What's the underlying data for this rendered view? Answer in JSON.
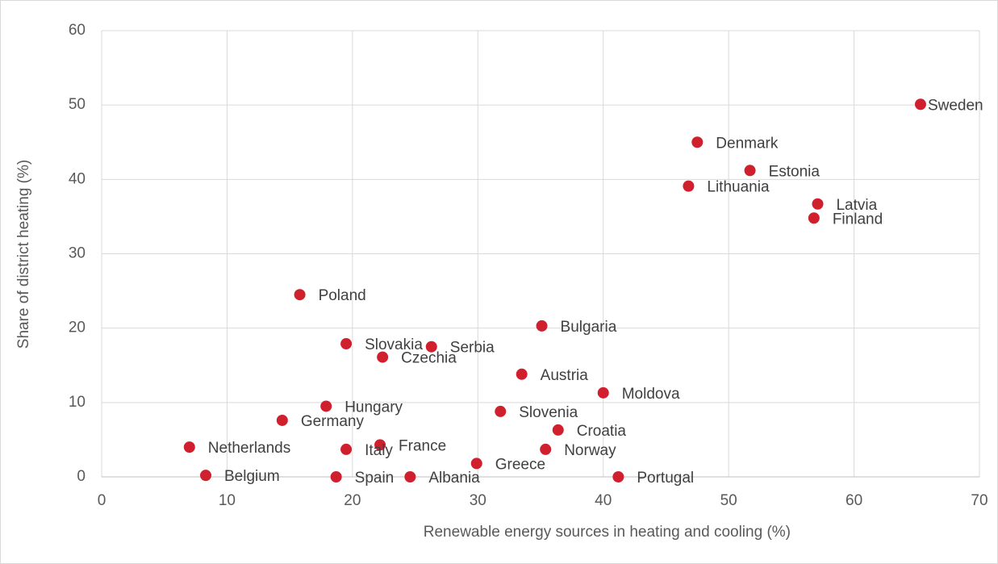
{
  "chart_data": {
    "type": "scatter",
    "x_label": "Renewable energy sources in heating and cooling (%)",
    "y_label": "Share of district heating (%)",
    "labels": [
      "Sweden",
      "Denmark",
      "Estonia",
      "Lithuania",
      "Latvia",
      "Finland",
      "Poland",
      "Bulgaria",
      "Slovakia",
      "Serbia",
      "Czechia",
      "Austria",
      "Moldova",
      "Hungary",
      "Slovenia",
      "Germany",
      "Croatia",
      "Netherlands",
      "France",
      "Italy",
      "Norway",
      "Greece",
      "Belgium",
      "Spain",
      "Albania",
      "Portugal"
    ],
    "x": [
      65.3,
      47.5,
      51.7,
      46.8,
      57.1,
      56.8,
      15.8,
      35.1,
      19.5,
      26.3,
      22.4,
      33.5,
      40.0,
      17.9,
      31.8,
      14.4,
      36.4,
      7.0,
      22.2,
      19.5,
      35.4,
      29.9,
      8.3,
      18.7,
      24.6,
      41.2
    ],
    "values": [
      50.1,
      45.0,
      41.2,
      39.1,
      36.7,
      34.8,
      24.5,
      20.3,
      17.9,
      17.5,
      16.1,
      13.8,
      11.3,
      9.5,
      8.8,
      7.6,
      6.3,
      4.0,
      4.3,
      3.7,
      3.7,
      1.8,
      0.2,
      0,
      0,
      0
    ],
    "color": "#d0202e",
    "xlim": [
      0,
      70
    ],
    "xticks": [
      0,
      10,
      20,
      30,
      40,
      50,
      60,
      70
    ],
    "ylim": [
      0,
      60
    ],
    "yticks": [
      0,
      10,
      20,
      30,
      40,
      50,
      60
    ],
    "grid": true
  }
}
